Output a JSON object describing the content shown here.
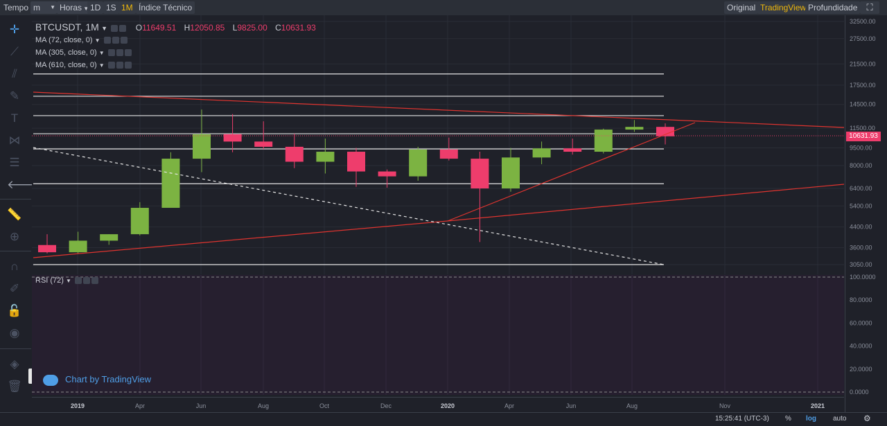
{
  "toolbar": {
    "tempo": "Tempo",
    "minutes": "m",
    "horas": "Horas",
    "d1": "1D",
    "s1": "1S",
    "m1": "1M",
    "indice": "Índice Técnico",
    "original": "Original",
    "tradingview": "TradingView",
    "profundidade": "Profundidade",
    "accent": "#f0b90b"
  },
  "legend": {
    "symbol": "BTCUSDT, 1M",
    "o_label": "O",
    "o": "11649.51",
    "h_label": "H",
    "h": "12050.85",
    "l_label": "L",
    "l": "9825.00",
    "c_label": "C",
    "c": "10631.93",
    "ma": [
      "MA (72, close, 0)",
      "MA (305, close, 0)",
      "MA (610, close, 0)"
    ],
    "rsi": "RSI (72)"
  },
  "price_tag": "10631.93",
  "brand": "Chart by TradingView",
  "status": {
    "time": "15:25:41 (UTC-3)",
    "percent": "%",
    "log": "log",
    "auto": "auto"
  },
  "colors": {
    "up": "#7cb342",
    "down": "#ee3d6c",
    "bg": "#1f2129",
    "trend": "#e0342f"
  },
  "chart_data": {
    "type": "candlestick",
    "title": "BTCUSDT, 1M",
    "scale": "log",
    "y_ticks": [
      32500,
      27500,
      21500,
      17500,
      14500,
      11500,
      9500,
      8000,
      6400,
      5400,
      4400,
      3600,
      3050
    ],
    "y_tick_labels": [
      "32500.00",
      "27500.00",
      "21500.00",
      "17500.00",
      "14500.00",
      "11500.00",
      "9500.00",
      "8000.00",
      "6400.00",
      "5400.00",
      "4400.00",
      "3600.00",
      "3050.00"
    ],
    "x_tick_labels": [
      "2019",
      "Apr",
      "Jun",
      "Aug",
      "Oct",
      "Dec",
      "2020",
      "Apr",
      "Jun",
      "Aug",
      "Nov",
      "2021"
    ],
    "candles": [
      {
        "month": "2019-01",
        "o": 3690,
        "h": 4100,
        "l": 3400,
        "c": 3440
      },
      {
        "month": "2019-02",
        "o": 3440,
        "h": 4200,
        "l": 3400,
        "c": 3850
      },
      {
        "month": "2019-03",
        "o": 3850,
        "h": 4100,
        "l": 3700,
        "c": 4100
      },
      {
        "month": "2019-04",
        "o": 4100,
        "h": 5600,
        "l": 4050,
        "c": 5300
      },
      {
        "month": "2019-05",
        "o": 5300,
        "h": 9100,
        "l": 5300,
        "c": 8550
      },
      {
        "month": "2019-06",
        "o": 8550,
        "h": 13800,
        "l": 7500,
        "c": 10850
      },
      {
        "month": "2019-07",
        "o": 10850,
        "h": 13200,
        "l": 9100,
        "c": 10100
      },
      {
        "month": "2019-08",
        "o": 10100,
        "h": 12300,
        "l": 9400,
        "c": 9600
      },
      {
        "month": "2019-09",
        "o": 9600,
        "h": 10900,
        "l": 7800,
        "c": 8300
      },
      {
        "month": "2019-10",
        "o": 8300,
        "h": 10400,
        "l": 7400,
        "c": 9150
      },
      {
        "month": "2019-11",
        "o": 9150,
        "h": 9500,
        "l": 6500,
        "c": 7550
      },
      {
        "month": "2019-12",
        "o": 7550,
        "h": 7700,
        "l": 6450,
        "c": 7200
      },
      {
        "month": "2020-01",
        "o": 7200,
        "h": 9600,
        "l": 6900,
        "c": 9350
      },
      {
        "month": "2020-02",
        "o": 9350,
        "h": 10500,
        "l": 8400,
        "c": 8550
      },
      {
        "month": "2020-03",
        "o": 8550,
        "h": 9150,
        "l": 3800,
        "c": 6400
      },
      {
        "month": "2020-04",
        "o": 6400,
        "h": 9500,
        "l": 6200,
        "c": 8650
      },
      {
        "month": "2020-05",
        "o": 8650,
        "h": 10100,
        "l": 8100,
        "c": 9450
      },
      {
        "month": "2020-06",
        "o": 9450,
        "h": 10400,
        "l": 8900,
        "c": 9150
      },
      {
        "month": "2020-07",
        "o": 9150,
        "h": 11450,
        "l": 9000,
        "c": 11350
      },
      {
        "month": "2020-08",
        "o": 11350,
        "h": 12450,
        "l": 11100,
        "c": 11650
      },
      {
        "month": "2020-09",
        "o": 11650,
        "h": 12050,
        "l": 9825,
        "c": 10632
      }
    ],
    "horizontal_levels": [
      19500,
      15700,
      13000,
      10900,
      9400,
      6700,
      3050
    ],
    "rsi_ticks": [
      "100.0000",
      "80.0000",
      "60.0000",
      "40.0000",
      "20.0000",
      "0.0000"
    ]
  }
}
